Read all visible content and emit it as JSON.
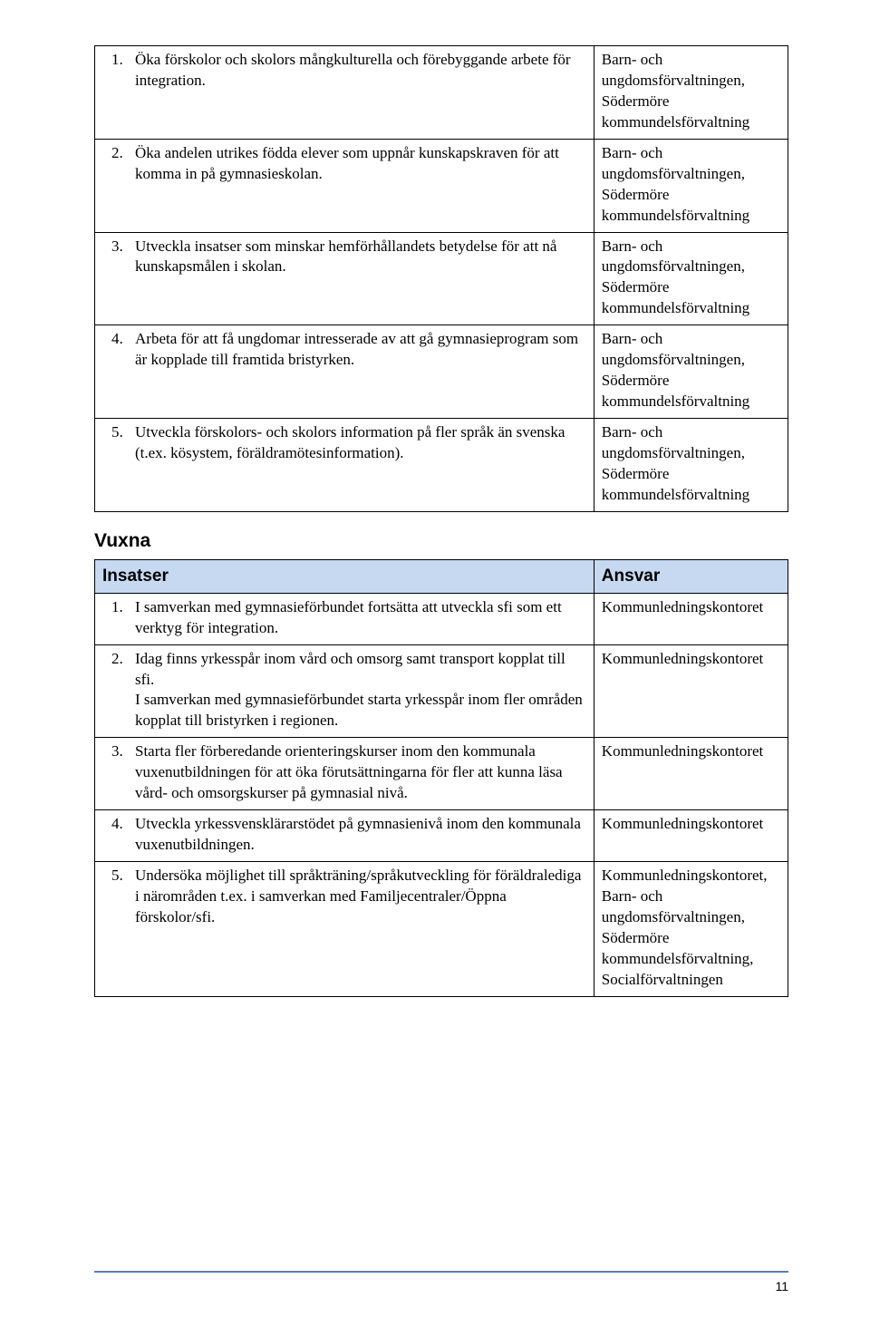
{
  "table1": {
    "rows": [
      {
        "num": "1.",
        "text": "Öka förskolor och skolors mångkulturella och förebyggande arbete för integration.",
        "resp": "Barn- och ungdomsförvaltningen, Södermöre kommundelsförvaltning"
      },
      {
        "num": "2.",
        "text": "Öka andelen utrikes födda elever som uppnår kunskapskraven för att komma in på gymnasieskolan.",
        "resp": "Barn- och ungdomsförvaltningen, Södermöre kommundelsförvaltning"
      },
      {
        "num": "3.",
        "text": "Utveckla insatser som minskar hemförhållandets betydelse för att nå kunskapsmålen i skolan.",
        "resp": "Barn- och ungdomsförvaltningen, Södermöre kommundelsförvaltning"
      },
      {
        "num": "4.",
        "text": "Arbeta för att få ungdomar intresserade av att gå gymnasieprogram som är kopplade till framtida bristyrken.",
        "resp": "Barn- och ungdomsförvaltningen, Södermöre kommundelsförvaltning"
      },
      {
        "num": "5.",
        "text": "Utveckla förskolors- och skolors information på fler språk än svenska (t.ex. kösystem, föräldramötesinformation).",
        "resp": "Barn- och ungdomsförvaltningen, Södermöre kommundelsförvaltning"
      }
    ]
  },
  "section2": {
    "title": "Vuxna",
    "header_left": "Insatser",
    "header_right": "Ansvar"
  },
  "table2": {
    "rows": [
      {
        "num": "1.",
        "text": "I samverkan med gymnasieförbundet fortsätta att utveckla sfi som ett verktyg för integration.",
        "resp": "Kommunledningskontoret"
      },
      {
        "num": "2.",
        "text": "Idag finns yrkesspår inom vård och omsorg samt transport kopplat till sfi.\nI samverkan med gymnasieförbundet starta yrkesspår inom fler områden kopplat till bristyrken i regionen.",
        "resp": "Kommunledningskontoret"
      },
      {
        "num": "3.",
        "text": "Starta fler förberedande orienteringskurser inom den kommunala vuxenutbildningen för att öka förutsättningarna för fler att kunna läsa vård- och omsorgskurser på gymnasial nivå.",
        "resp": "Kommunledningskontoret"
      },
      {
        "num": "4.",
        "text": "Utveckla yrkessvensklärarstödet på gymnasienivå inom den kommunala vuxenutbildningen.",
        "resp": "Kommunledningskontoret"
      },
      {
        "num": "5.",
        "text": "Undersöka möjlighet till språkträning/språkutveckling för föräldralediga i närområden t.ex. i samverkan med Familjecentraler/Öppna förskolor/sfi.",
        "resp": "Kommunledningskontoret, Barn- och ungdomsförvaltningen, Södermöre kommundelsförvaltning, Socialförvaltningen"
      }
    ]
  },
  "page_number": "11",
  "colors": {
    "header_bg": "#c6d9f1",
    "footer_line": "#4f81bd"
  }
}
